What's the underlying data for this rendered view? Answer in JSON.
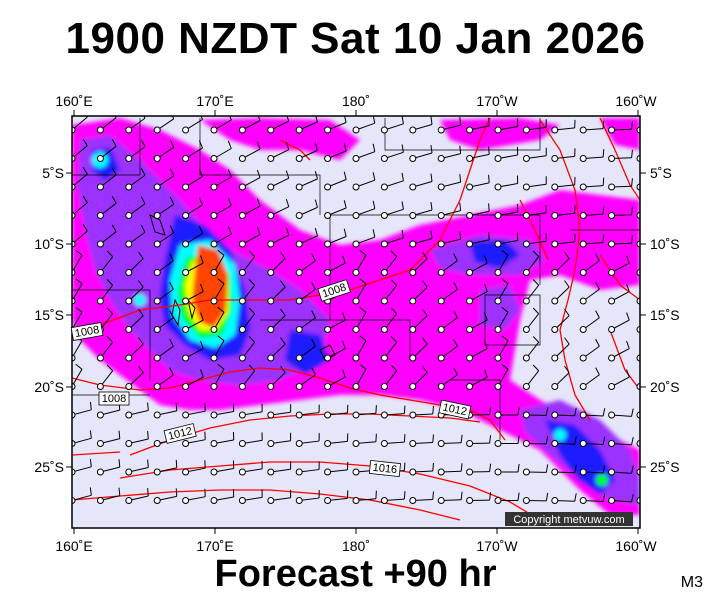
{
  "title": "1900 NZDT Sat 10 Jan 2026",
  "footer": "Forecast +90 hr",
  "model": "M3",
  "credit": "Copyright metvuw.com",
  "map": {
    "lon_labels": [
      "160˚E",
      "170˚E",
      "180˚",
      "170˚W",
      "160˚W"
    ],
    "lat_labels": [
      "5˚S",
      "10˚S",
      "15˚S",
      "20˚S",
      "25˚S"
    ],
    "isobar_labels": [
      "1008",
      "1008",
      "1008",
      "1012",
      "1012",
      "1016"
    ],
    "background_color": "#e6e6fa",
    "isobar_color": "#ff0000",
    "rain_colors": [
      "#ff00ff",
      "#9b30ff",
      "#0000ff",
      "#00ffff",
      "#00ff00",
      "#ffff00",
      "#ff4500"
    ]
  }
}
